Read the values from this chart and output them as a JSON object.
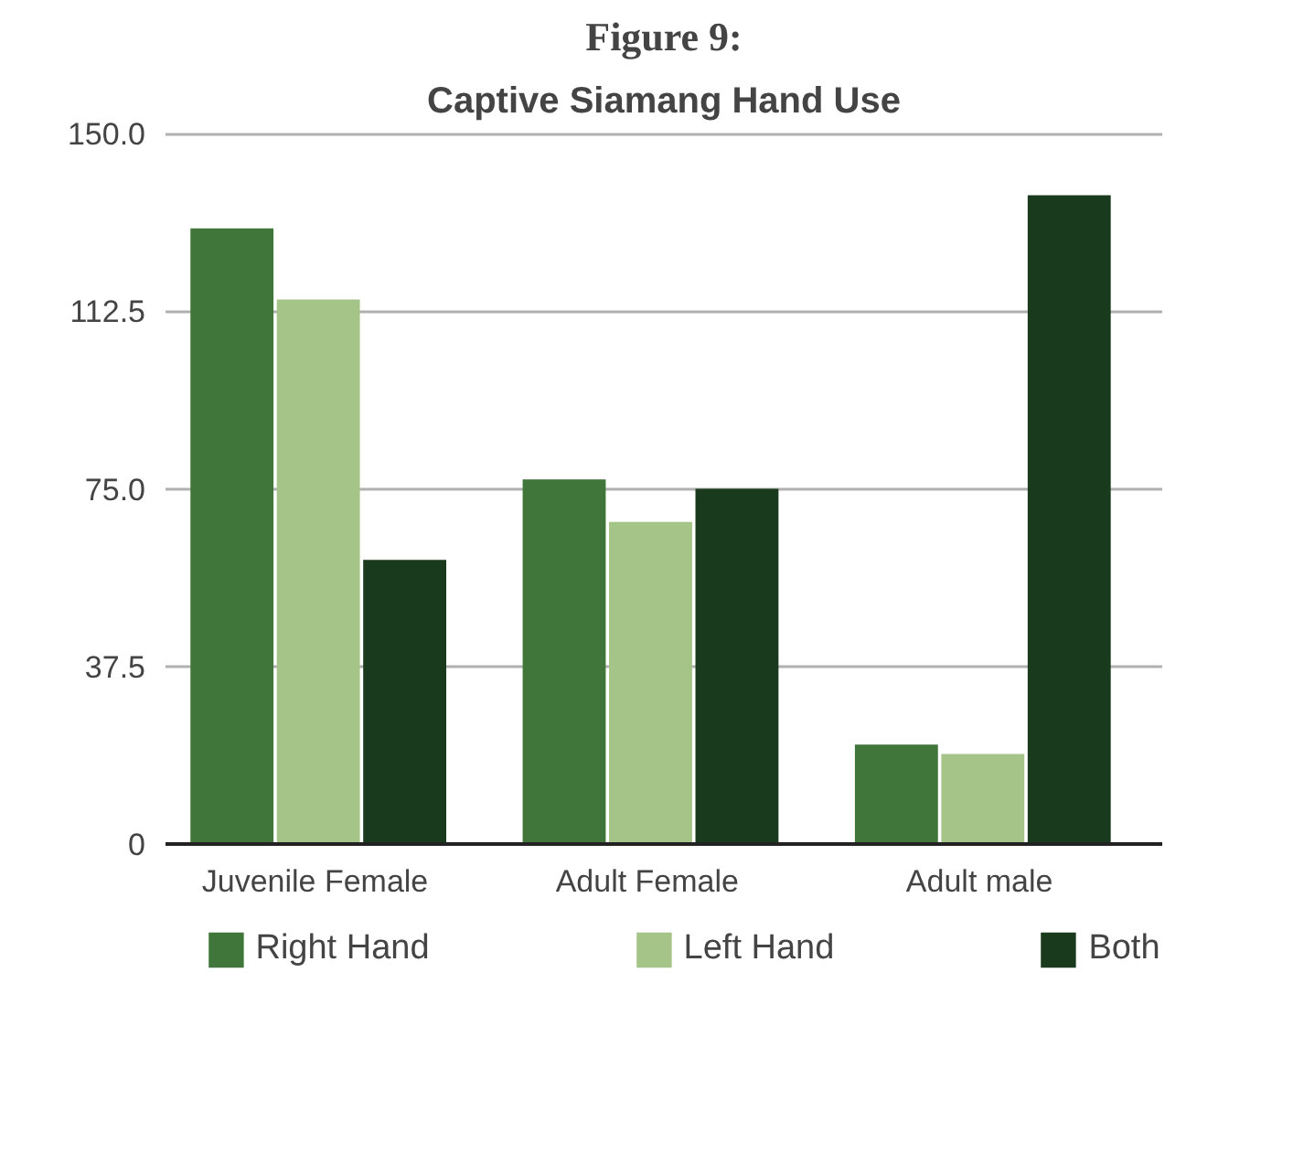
{
  "chart_data": {
    "type": "bar",
    "title": "Figure 9:",
    "subtitle": "Captive Siamang Hand Use",
    "categories": [
      "Juvenile Female",
      "Adult Female",
      "Adult male"
    ],
    "series": [
      {
        "name": "Right Hand",
        "color": "#41763a",
        "values": [
          130,
          77,
          21
        ]
      },
      {
        "name": "Left Hand",
        "color": "#a5c487",
        "values": [
          115,
          68,
          19
        ]
      },
      {
        "name": "Both",
        "color": "#1a3a1d",
        "values": [
          60,
          75,
          137
        ]
      }
    ],
    "ylim": [
      0,
      150
    ],
    "yticks": [
      0,
      {
        "value": 37.5,
        "label": "37.5"
      },
      {
        "value": 75,
        "label": "75.0"
      },
      {
        "value": 112.5,
        "label": "112.5"
      },
      {
        "value": 150,
        "label": "150.0"
      }
    ],
    "grid": "y",
    "legend": "bottom"
  }
}
